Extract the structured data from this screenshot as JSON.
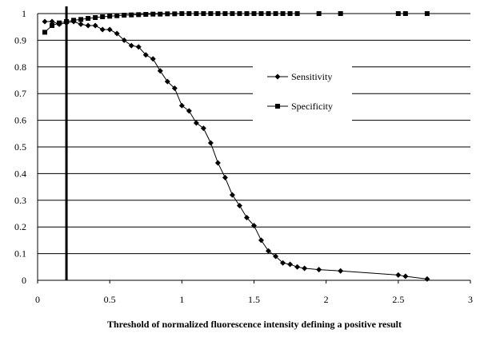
{
  "chart_data": {
    "type": "line",
    "title": "",
    "xlabel": "Threshold of normalized fluorescence intensity defining a positive result",
    "ylabel": "",
    "xlim": [
      0,
      3
    ],
    "ylim": [
      0,
      1
    ],
    "xticks": [
      "0",
      "0.5",
      "1",
      "1.5",
      "2",
      "2.5",
      "3"
    ],
    "yticks": [
      "0",
      "0.1",
      "0.2",
      "0.3",
      "0.4",
      "0.5",
      "0.6",
      "0.7",
      "0.8",
      "0.9",
      "1"
    ],
    "grid": "horizontal",
    "legend_position": "center-right",
    "vertical_reference_line": 0.2,
    "series": [
      {
        "name": "Sensitivity",
        "marker": "diamond",
        "color": "#000000",
        "x": [
          0.05,
          0.1,
          0.15,
          0.2,
          0.25,
          0.3,
          0.35,
          0.4,
          0.45,
          0.5,
          0.55,
          0.6,
          0.65,
          0.7,
          0.75,
          0.8,
          0.85,
          0.9,
          0.95,
          1.0,
          1.05,
          1.1,
          1.15,
          1.2,
          1.25,
          1.3,
          1.35,
          1.4,
          1.45,
          1.5,
          1.55,
          1.6,
          1.65,
          1.7,
          1.75,
          1.8,
          1.85,
          1.95,
          2.1,
          2.5,
          2.55,
          2.7
        ],
        "y": [
          0.97,
          0.97,
          0.96,
          0.965,
          0.97,
          0.96,
          0.955,
          0.955,
          0.94,
          0.94,
          0.925,
          0.9,
          0.88,
          0.875,
          0.845,
          0.83,
          0.785,
          0.745,
          0.72,
          0.655,
          0.635,
          0.59,
          0.57,
          0.515,
          0.44,
          0.385,
          0.32,
          0.28,
          0.235,
          0.205,
          0.15,
          0.11,
          0.09,
          0.065,
          0.06,
          0.05,
          0.045,
          0.04,
          0.035,
          0.02,
          0.015,
          0.005
        ]
      },
      {
        "name": "Specificity",
        "marker": "square",
        "color": "#000000",
        "x": [
          0.05,
          0.1,
          0.15,
          0.2,
          0.25,
          0.3,
          0.35,
          0.4,
          0.45,
          0.5,
          0.55,
          0.6,
          0.65,
          0.7,
          0.75,
          0.8,
          0.85,
          0.9,
          0.95,
          1.0,
          1.05,
          1.1,
          1.15,
          1.2,
          1.25,
          1.3,
          1.35,
          1.4,
          1.45,
          1.5,
          1.55,
          1.6,
          1.65,
          1.7,
          1.75,
          1.8,
          1.95,
          2.1,
          2.5,
          2.55,
          2.7
        ],
        "y": [
          0.93,
          0.955,
          0.965,
          0.97,
          0.975,
          0.978,
          0.982,
          0.985,
          0.988,
          0.99,
          0.992,
          0.994,
          0.995,
          0.996,
          0.997,
          0.998,
          0.998,
          0.999,
          0.999,
          1.0,
          1.0,
          1.0,
          1.0,
          1.0,
          1.0,
          1.0,
          1.0,
          1.0,
          1.0,
          1.0,
          1.0,
          1.0,
          1.0,
          1.0,
          1.0,
          1.0,
          1.0,
          1.0,
          1.0,
          1.0,
          1.0
        ]
      }
    ]
  }
}
